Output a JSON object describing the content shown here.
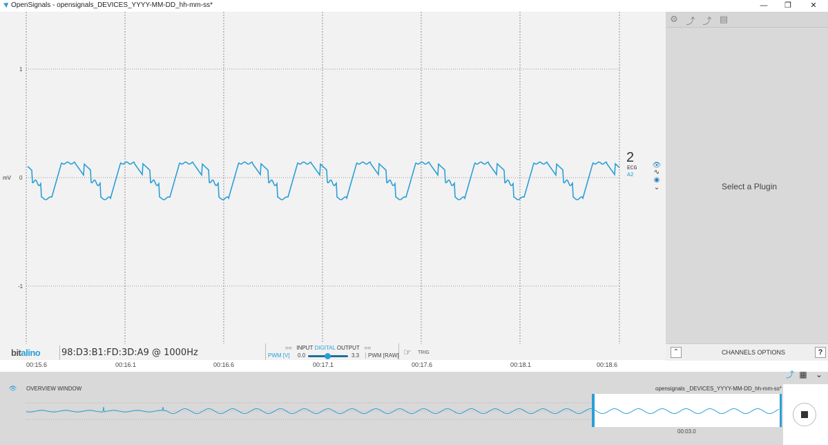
{
  "window": {
    "title": "OpenSignals - opensignals_DEVICES_YYYY-MM-DD_hh-mm-ss*",
    "minimize_icon": "minimize-icon",
    "maximize_icon": "restore-icon",
    "close_icon": "close-icon"
  },
  "plot": {
    "ylabel": "mV",
    "yticks": [
      "1",
      "0",
      "-1"
    ],
    "xticks": [
      "00:15.6",
      "00:16.1",
      "00:16.6",
      "00:17.1",
      "00:17.6",
      "00:18.1",
      "00:18.6"
    ],
    "signal_color": "#2a9fd6",
    "background": "#f2f2f2"
  },
  "channel": {
    "number": "2",
    "type": "ECG",
    "port": "A2",
    "controls": [
      "eye-icon",
      "signal-icon",
      "radio-icon",
      "chevron-down-icon"
    ]
  },
  "device": {
    "brand_prefix": "bit",
    "brand_suffix": "alino",
    "mac": "98:D3:B1:FD:3D:A9 @ 1000Hz",
    "io_input": "INPUT",
    "io_digital": "DIGITAL",
    "io_output": "OUTPUT",
    "pwm_v": "PWM [V]",
    "pwm_min": "0.0",
    "pwm_max": "3.3",
    "pwm_raw": "PWM [RAW]",
    "trig": "TRIG"
  },
  "right_panel": {
    "toolbar_icons": [
      "gear-icon",
      "plugin-icon",
      "plugin-remove-icon",
      "chart-icon"
    ],
    "message": "Select a Plugin",
    "options_label": "CHANNELS OPTIONS",
    "help": "?"
  },
  "overview": {
    "label": "OVERVIEW WINDOW",
    "filename": "opensignals _DEVICES_YYYY-MM-DD_hh-mm-ss*",
    "time": "00:03.0"
  },
  "accent_color": "#2a9fd6"
}
